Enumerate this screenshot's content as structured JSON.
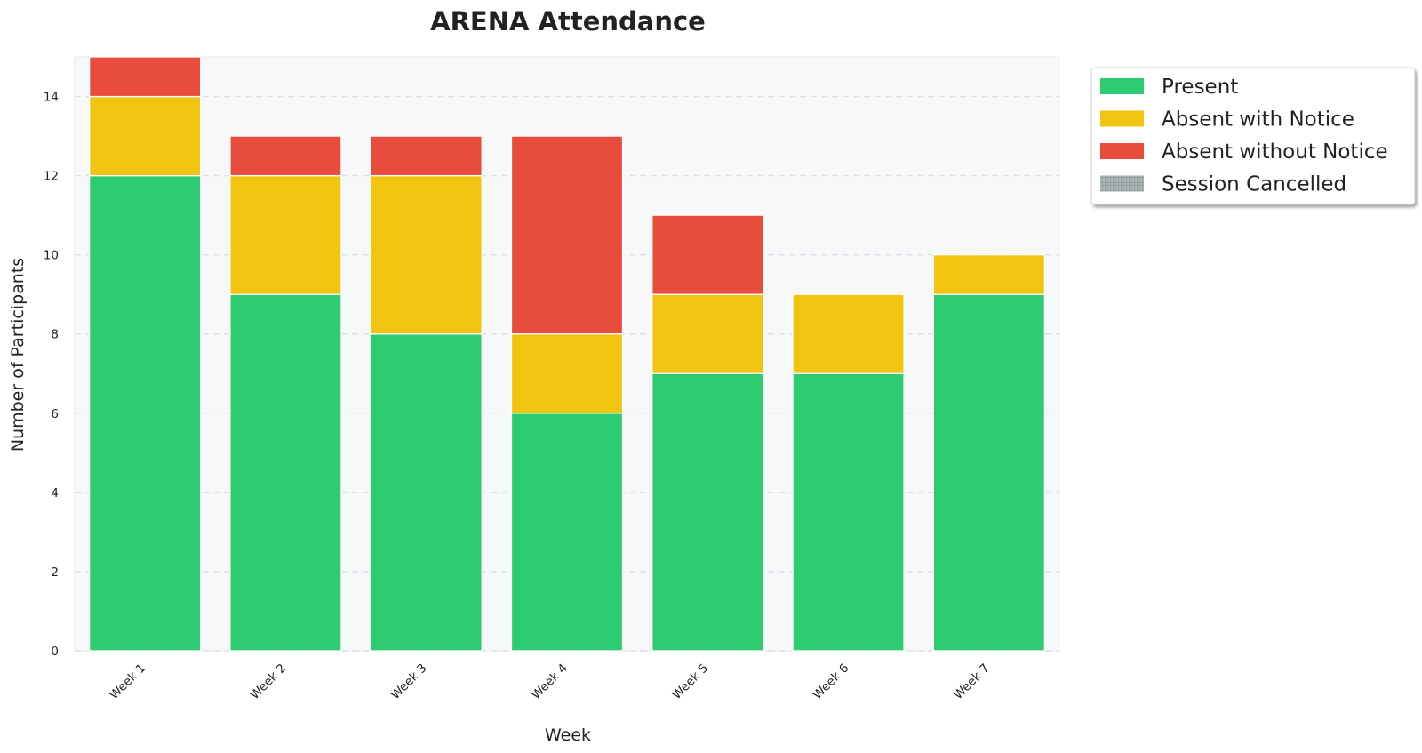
{
  "chart_data": {
    "type": "bar",
    "stacked": true,
    "title": "ARENA Attendance",
    "xlabel": "Week",
    "ylabel": "Number of Participants",
    "categories": [
      "Week 1",
      "Week 2",
      "Week 3",
      "Week 4",
      "Week 5",
      "Week 6",
      "Week 7"
    ],
    "series": [
      {
        "name": "Present",
        "color": "#2ecc71",
        "values": [
          12,
          9,
          8,
          6,
          7,
          7,
          9
        ]
      },
      {
        "name": "Absent with Notice",
        "color": "#f1c40f",
        "values": [
          2,
          3,
          4,
          2,
          2,
          2,
          1
        ]
      },
      {
        "name": "Absent without Notice",
        "color": "#e74c3c",
        "values": [
          1,
          1,
          1,
          5,
          2,
          0,
          0
        ]
      },
      {
        "name": "Session Cancelled",
        "color": "#95a5a6",
        "pattern": "dotted",
        "values": [
          0,
          0,
          0,
          0,
          0,
          0,
          0
        ]
      }
    ],
    "ylim": [
      0,
      15
    ],
    "yticks": [
      0,
      2,
      4,
      6,
      8,
      10,
      12,
      14
    ],
    "grid": true,
    "legend_position": "outside-top-right",
    "colors": {
      "plot_background": "#f7f8fa",
      "grid": "#dcdfe4",
      "bar_edge": "#ffffff"
    }
  }
}
